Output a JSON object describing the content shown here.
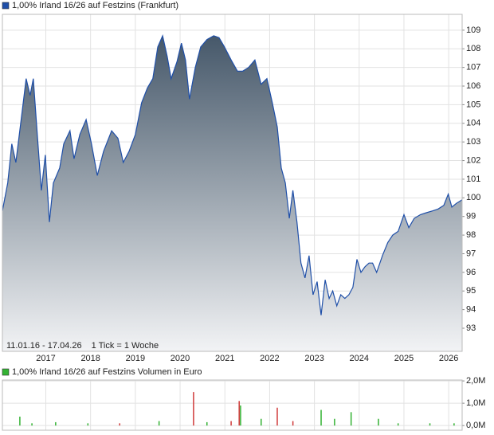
{
  "chart_data": [
    {
      "type": "area",
      "series": [
        {
          "name": "1,00% Irland 16/26 auf Festzins (Frankfurt)",
          "color": "#1f4fa8",
          "x": [
            2016.03,
            2016.15,
            2016.24,
            2016.33,
            2016.47,
            2016.56,
            2016.65,
            2016.72,
            2016.81,
            2016.9,
            2016.99,
            2017.08,
            2017.17,
            2017.31,
            2017.4,
            2017.54,
            2017.63,
            2017.76,
            2017.9,
            2018.02,
            2018.15,
            2018.29,
            2018.47,
            2018.61,
            2018.73,
            2018.86,
            2019.0,
            2019.14,
            2019.27,
            2019.39,
            2019.5,
            2019.61,
            2019.71,
            2019.8,
            2019.93,
            2020.03,
            2020.12,
            2020.21,
            2020.34,
            2020.46,
            2020.6,
            2020.75,
            2020.87,
            2020.99,
            2021.14,
            2021.28,
            2021.4,
            2021.53,
            2021.67,
            2021.81,
            2021.94,
            2022.06,
            2022.17,
            2022.26,
            2022.35,
            2022.44,
            2022.52,
            2022.61,
            2022.7,
            2022.79,
            2022.88,
            2022.97,
            2023.06,
            2023.15,
            2023.24,
            2023.33,
            2023.41,
            2023.5,
            2023.59,
            2023.68,
            2023.77,
            2023.86,
            2023.95,
            2024.04,
            2024.13,
            2024.22,
            2024.3,
            2024.39,
            2024.52,
            2024.64,
            2024.75,
            2024.87,
            2025.0,
            2025.11,
            2025.23,
            2025.37,
            2025.5,
            2025.64,
            2025.76,
            2025.89,
            2025.99,
            2026.07,
            2026.17,
            2026.3
          ],
          "values": [
            99.3,
            100.8,
            102.9,
            101.9,
            104.6,
            106.4,
            105.5,
            106.4,
            103.4,
            100.4,
            102.3,
            98.7,
            100.8,
            101.6,
            102.9,
            103.6,
            102.1,
            103.4,
            104.2,
            102.9,
            101.2,
            102.5,
            103.6,
            103.2,
            101.9,
            102.5,
            103.4,
            105.1,
            105.9,
            106.4,
            108.1,
            108.7,
            107.6,
            106.4,
            107.3,
            108.3,
            107.4,
            105.3,
            107.0,
            108.1,
            108.5,
            108.7,
            108.6,
            108.1,
            107.4,
            106.8,
            106.8,
            107.0,
            107.4,
            106.1,
            106.4,
            105.1,
            103.8,
            101.6,
            100.8,
            98.9,
            100.4,
            98.7,
            96.5,
            95.7,
            96.9,
            94.8,
            95.5,
            93.7,
            95.6,
            94.6,
            95.0,
            94.2,
            94.8,
            94.6,
            94.8,
            95.2,
            96.7,
            96.0,
            96.3,
            96.5,
            96.5,
            96.0,
            96.9,
            97.6,
            98.0,
            98.2,
            99.1,
            98.4,
            98.9,
            99.1,
            99.2,
            99.3,
            99.4,
            99.6,
            100.2,
            99.5,
            99.7,
            99.9
          ]
        }
      ],
      "xlim": [
        2016.03,
        2026.3
      ],
      "xticks": [
        2017,
        2018,
        2019,
        2020,
        2021,
        2022,
        2023,
        2024,
        2025,
        2026
      ],
      "ylim": [
        91.76,
        109.85
      ],
      "yticks": [
        93,
        94,
        95,
        96,
        97,
        98,
        99,
        100,
        101,
        102,
        103,
        104,
        105,
        106,
        107,
        108,
        109
      ],
      "grid": true,
      "date_range": "11.01.16 - 17.04.26",
      "tick_note": "1 Tick = 1 Woche"
    },
    {
      "type": "bar",
      "series": [
        {
          "name": "1,00% Irland 16/26 auf Festzins Volumen in Euro",
          "color": "#33b233",
          "x": [
            2016.42,
            2016.69,
            2017.22,
            2017.94,
            2018.65,
            2019.53,
            2020.3,
            2020.6,
            2021.14,
            2021.32,
            2021.35,
            2021.81,
            2022.17,
            2022.52,
            2023.15,
            2023.45,
            2023.82,
            2024.43,
            2024.87,
            2025.58,
            2026.12
          ],
          "values": [
            400000,
            100000,
            150000,
            100000,
            100000,
            200000,
            1500000,
            150000,
            200000,
            1100000,
            900000,
            300000,
            800000,
            200000,
            700000,
            300000,
            600000,
            300000,
            100000,
            100000,
            100000
          ],
          "colors": [
            "#33b233",
            "#33b233",
            "#33b233",
            "#33b233",
            "#d03a3a",
            "#33b233",
            "#d03a3a",
            "#33b233",
            "#d03a3a",
            "#d03a3a",
            "#33b233",
            "#33b233",
            "#d03a3a",
            "#d03a3a",
            "#33b233",
            "#33b233",
            "#33b233",
            "#33b233",
            "#33b233",
            "#33b233",
            "#33b233"
          ]
        }
      ],
      "xlim": [
        2016.03,
        2026.3
      ],
      "ylim": [
        -210000,
        2040000
      ],
      "yticks": [
        {
          "value": 0,
          "label": "0,0M"
        },
        {
          "value": 1000000,
          "label": "1,0M"
        },
        {
          "value": 2000000,
          "label": "2,0M"
        }
      ],
      "grid": true
    }
  ]
}
